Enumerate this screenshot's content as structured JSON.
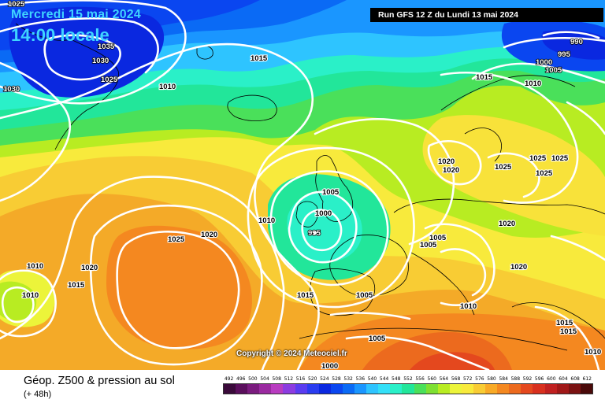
{
  "header": {
    "date": "Mercredi 15 mai 2024",
    "time": "14:00 locale",
    "run": "Run GFS 12 Z du Lundi 13 mai 2024"
  },
  "copyright": "Copyright © 2024 Meteociel.fr",
  "footer": {
    "title": "Géop. Z500 & pression au sol",
    "subtitle": "(+ 48h)"
  },
  "legend": {
    "values": [
      "492",
      "496",
      "500",
      "504",
      "508",
      "512",
      "516",
      "520",
      "524",
      "528",
      "532",
      "536",
      "540",
      "544",
      "548",
      "552",
      "556",
      "560",
      "564",
      "568",
      "572",
      "576",
      "580",
      "584",
      "588",
      "592",
      "596",
      "600",
      "604",
      "608",
      "612"
    ],
    "colors": [
      "#3a0a3a",
      "#5a0f5c",
      "#7a1b7e",
      "#9a2aa0",
      "#b83cc0",
      "#8c3ce0",
      "#5a3cf0",
      "#2a3cf0",
      "#0a28e0",
      "#0a46f0",
      "#0a6af5",
      "#1a96ff",
      "#2ec4ff",
      "#34e0f8",
      "#2af0c8",
      "#22e69a",
      "#4ae05a",
      "#7ee032",
      "#b8ec22",
      "#ecf43a",
      "#f8ea3c",
      "#f8cc34",
      "#f8aa26",
      "#f48820",
      "#ec6a1e",
      "#e4481e",
      "#d8301e",
      "#c02020",
      "#a01818",
      "#7a1212",
      "#4a0a0a"
    ]
  },
  "isobars": [
    "1025",
    "1035",
    "1030",
    "1030",
    "1025",
    "1030",
    "1015",
    "1010",
    "990",
    "995",
    "1000",
    "1005",
    "1015",
    "1010",
    "1020",
    "1020",
    "1025",
    "1025",
    "1025",
    "1025",
    "1010",
    "1005",
    "1000",
    "995",
    "1025",
    "1020",
    "1010",
    "1020",
    "1015",
    "1010",
    "1020",
    "1005",
    "1005",
    "1020",
    "1005",
    "1015",
    "1010",
    "1005",
    "1000",
    "1015",
    "1015",
    "1010"
  ]
}
